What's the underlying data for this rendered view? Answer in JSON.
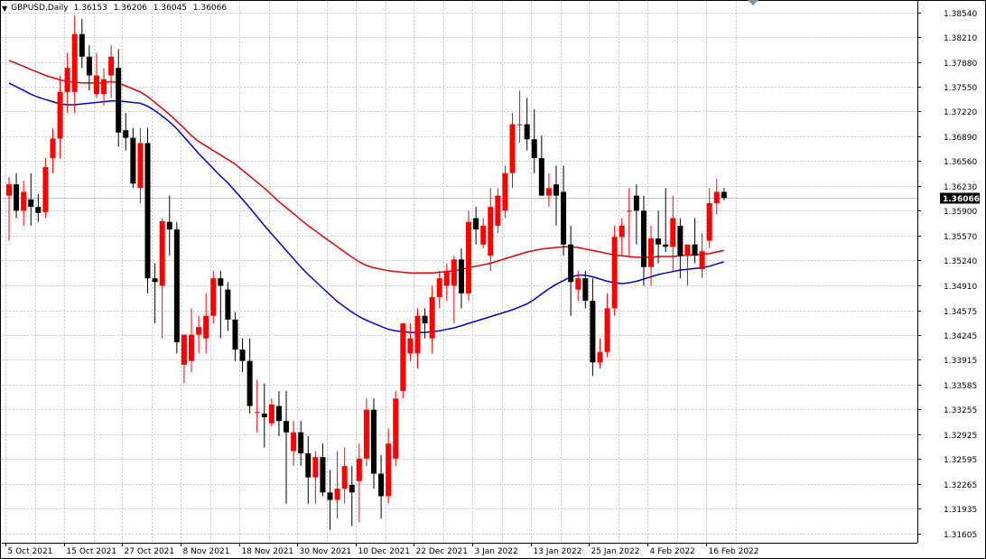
{
  "window": {
    "symbol_timeframe": "GBPUSD,Daily",
    "ohlc": [
      "1.36153",
      "1.36206",
      "1.36045",
      "1.36066"
    ],
    "current_price_label": "1.36066"
  },
  "colors": {
    "bull": "#ff0000",
    "bear": "#000000",
    "ma_fast": "#e60000",
    "ma_slow": "#0000cc",
    "grid": "#c8c8c8",
    "axis": "#000000",
    "price_line": "#c0c0c0",
    "price_label_bg": "#000000",
    "price_label_fg": "#ffffff"
  },
  "chart_data": {
    "type": "candlestick",
    "title": "GBPUSD,Daily",
    "price_axis_ticks": [
      "1.38540",
      "1.38210",
      "1.37880",
      "1.37550",
      "1.37220",
      "1.36890",
      "1.36560",
      "1.36230",
      "1.35900",
      "1.35570",
      "1.35240",
      "1.34910",
      "1.34575",
      "1.34245",
      "1.33915",
      "1.33585",
      "1.33255",
      "1.32925",
      "1.32595",
      "1.32265",
      "1.31935",
      "1.31605"
    ],
    "date_axis_labels": [
      "5 Oct 2021",
      "15 Oct 2021",
      "27 Oct 2021",
      "8 Nov 2021",
      "18 Nov 2021",
      "30 Nov 2021",
      "10 Dec 2021",
      "22 Dec 2021",
      "3 Jan 2022",
      "13 Jan 2022",
      "25 Jan 2022",
      "4 Feb 2022",
      "16 Feb 2022"
    ],
    "ylim": [
      1.3148,
      1.3868
    ],
    "grid": true,
    "candles": [
      [
        1.361,
        1.3635,
        1.355,
        1.3625
      ],
      [
        1.3625,
        1.364,
        1.358,
        1.359
      ],
      [
        1.359,
        1.363,
        1.357,
        1.3615
      ],
      [
        1.3605,
        1.364,
        1.357,
        1.3595
      ],
      [
        1.3595,
        1.3612,
        1.3575,
        1.3587
      ],
      [
        1.3588,
        1.366,
        1.358,
        1.3648
      ],
      [
        1.366,
        1.37,
        1.364,
        1.3686
      ],
      [
        1.3686,
        1.377,
        1.366,
        1.3748
      ],
      [
        1.3748,
        1.38,
        1.372,
        1.378
      ],
      [
        1.3748,
        1.385,
        1.372,
        1.3825
      ],
      [
        1.3825,
        1.3845,
        1.378,
        1.3795
      ],
      [
        1.3795,
        1.381,
        1.375,
        1.377
      ],
      [
        1.3745,
        1.38,
        1.374,
        1.377
      ],
      [
        1.3745,
        1.378,
        1.373,
        1.3765
      ],
      [
        1.377,
        1.381,
        1.374,
        1.3795
      ],
      [
        1.378,
        1.3805,
        1.3675,
        1.3694
      ],
      [
        1.3697,
        1.372,
        1.367,
        1.3687
      ],
      [
        1.3687,
        1.37,
        1.362,
        1.3626
      ],
      [
        1.362,
        1.37,
        1.36,
        1.368
      ],
      [
        1.368,
        1.37,
        1.348,
        1.35
      ],
      [
        1.35,
        1.352,
        1.344,
        1.3495
      ],
      [
        1.349,
        1.358,
        1.342,
        1.3576
      ],
      [
        1.3575,
        1.361,
        1.353,
        1.3565
      ],
      [
        1.3565,
        1.3575,
        1.34,
        1.3415
      ],
      [
        1.3385,
        1.3425,
        1.336,
        1.3425
      ],
      [
        1.339,
        1.346,
        1.3375,
        1.3425
      ],
      [
        1.3425,
        1.345,
        1.34,
        1.3435
      ],
      [
        1.342,
        1.348,
        1.34,
        1.345
      ],
      [
        1.345,
        1.351,
        1.344,
        1.35
      ],
      [
        1.35,
        1.351,
        1.342,
        1.349
      ],
      [
        1.3485,
        1.3495,
        1.343,
        1.3445
      ],
      [
        1.3445,
        1.3455,
        1.339,
        1.3405
      ],
      [
        1.3405,
        1.342,
        1.3375,
        1.339
      ],
      [
        1.339,
        1.342,
        1.332,
        1.333
      ],
      [
        1.3322,
        1.3365,
        1.3295,
        1.3322
      ],
      [
        1.332,
        1.336,
        1.3275,
        1.3315
      ],
      [
        1.3307,
        1.334,
        1.3303,
        1.3332
      ],
      [
        1.333,
        1.335,
        1.329,
        1.331
      ],
      [
        1.331,
        1.335,
        1.32,
        1.3295
      ],
      [
        1.327,
        1.331,
        1.325,
        1.3295
      ],
      [
        1.3295,
        1.331,
        1.325,
        1.3267
      ],
      [
        1.3267,
        1.329,
        1.32,
        1.3235
      ],
      [
        1.3235,
        1.327,
        1.32,
        1.3262
      ],
      [
        1.3262,
        1.328,
        1.321,
        1.3215
      ],
      [
        1.3215,
        1.3245,
        1.3165,
        1.3205
      ],
      [
        1.3205,
        1.327,
        1.318,
        1.322
      ],
      [
        1.322,
        1.3275,
        1.32,
        1.325
      ],
      [
        1.3225,
        1.325,
        1.317,
        1.3215
      ],
      [
        1.323,
        1.328,
        1.3175,
        1.326
      ],
      [
        1.326,
        1.334,
        1.325,
        1.3325
      ],
      [
        1.3325,
        1.334,
        1.322,
        1.324
      ],
      [
        1.324,
        1.3265,
        1.318,
        1.321
      ],
      [
        1.321,
        1.33,
        1.32,
        1.328
      ],
      [
        1.326,
        1.335,
        1.325,
        1.334
      ],
      [
        1.335,
        1.344,
        1.334,
        1.344
      ],
      [
        1.34,
        1.344,
        1.339,
        1.342
      ],
      [
        1.34,
        1.346,
        1.338,
        1.345
      ],
      [
        1.345,
        1.346,
        1.342,
        1.344
      ],
      [
        1.342,
        1.349,
        1.34,
        1.3475
      ],
      [
        1.3475,
        1.351,
        1.346,
        1.35
      ],
      [
        1.349,
        1.352,
        1.347,
        1.351
      ],
      [
        1.349,
        1.353,
        1.344,
        1.3525
      ],
      [
        1.3525,
        1.354,
        1.346,
        1.348
      ],
      [
        1.348,
        1.359,
        1.347,
        1.3575
      ],
      [
        1.358,
        1.3595,
        1.3545,
        1.3565
      ],
      [
        1.3545,
        1.358,
        1.354,
        1.357
      ],
      [
        1.353,
        1.362,
        1.351,
        1.3595
      ],
      [
        1.357,
        1.362,
        1.356,
        1.361
      ],
      [
        1.359,
        1.365,
        1.358,
        1.364
      ],
      [
        1.364,
        1.372,
        1.362,
        1.3705
      ],
      [
        1.3705,
        1.375,
        1.368,
        1.3705
      ],
      [
        1.3705,
        1.374,
        1.367,
        1.3685
      ],
      [
        1.3685,
        1.3725,
        1.364,
        1.366
      ],
      [
        1.366,
        1.369,
        1.361,
        1.361
      ],
      [
        1.361,
        1.364,
        1.3595,
        1.362
      ],
      [
        1.3625,
        1.365,
        1.357,
        1.361
      ],
      [
        1.3615,
        1.365,
        1.353,
        1.3545
      ],
      [
        1.3545,
        1.357,
        1.345,
        1.3495
      ],
      [
        1.3485,
        1.351,
        1.347,
        1.35
      ],
      [
        1.35,
        1.351,
        1.346,
        1.347
      ],
      [
        1.347,
        1.35,
        1.337,
        1.3388
      ],
      [
        1.3388,
        1.342,
        1.338,
        1.3402
      ],
      [
        1.3402,
        1.348,
        1.3395,
        1.346
      ],
      [
        1.346,
        1.357,
        1.345,
        1.3555
      ],
      [
        1.3555,
        1.358,
        1.353,
        1.357
      ],
      [
        1.359,
        1.362,
        1.353,
        1.359
      ],
      [
        1.361,
        1.3625,
        1.3545,
        1.359
      ],
      [
        1.359,
        1.361,
        1.349,
        1.3515
      ],
      [
        1.3515,
        1.357,
        1.349,
        1.3553
      ],
      [
        1.3553,
        1.359,
        1.352,
        1.3545
      ],
      [
        1.3545,
        1.362,
        1.3535,
        1.3542
      ],
      [
        1.3542,
        1.361,
        1.351,
        1.358
      ],
      [
        1.357,
        1.358,
        1.35,
        1.353
      ],
      [
        1.353,
        1.354,
        1.349,
        1.3545
      ],
      [
        1.3545,
        1.358,
        1.352,
        1.353
      ],
      [
        1.3512,
        1.356,
        1.35,
        1.3536
      ],
      [
        1.355,
        1.362,
        1.354,
        1.36
      ],
      [
        1.36,
        1.3632,
        1.3585,
        1.3615
      ],
      [
        1.3615,
        1.362,
        1.3604,
        1.3607
      ]
    ],
    "ma_fast": {
      "period_visible": false,
      "values": [
        1.379,
        1.3786,
        1.3782,
        1.3778,
        1.3774,
        1.377,
        1.3767,
        1.3764,
        1.3762,
        1.3761,
        1.376,
        1.376,
        1.376,
        1.376,
        1.3762,
        1.376,
        1.3756,
        1.3752,
        1.3748,
        1.3742,
        1.3734,
        1.3726,
        1.3718,
        1.3709,
        1.37,
        1.369,
        1.3682,
        1.3676,
        1.367,
        1.3664,
        1.3658,
        1.3652,
        1.3644,
        1.3636,
        1.3628,
        1.362,
        1.3611,
        1.3602,
        1.3594,
        1.3586,
        1.3578,
        1.357,
        1.3563,
        1.3556,
        1.3549,
        1.3542,
        1.3535,
        1.3528,
        1.3522,
        1.3517,
        1.3514,
        1.3512,
        1.351,
        1.3509,
        1.3508,
        1.3507,
        1.3507,
        1.3507,
        1.3507,
        1.3508,
        1.3509,
        1.351,
        1.3512,
        1.3514,
        1.3516,
        1.3518,
        1.352,
        1.3523,
        1.3526,
        1.3529,
        1.3532,
        1.3535,
        1.3537,
        1.3539,
        1.354,
        1.3541,
        1.3542,
        1.3542,
        1.3541,
        1.3539,
        1.3537,
        1.3535,
        1.3533,
        1.3531,
        1.353,
        1.3529,
        1.3528,
        1.3528,
        1.3528,
        1.3529,
        1.3529,
        1.3529,
        1.353,
        1.3531,
        1.3531,
        1.3532,
        1.3533,
        1.3535,
        1.3537
      ]
    },
    "ma_slow": {
      "period_visible": false,
      "values": [
        1.376,
        1.3755,
        1.375,
        1.3745,
        1.3741,
        1.3738,
        1.3735,
        1.3732,
        1.3731,
        1.3731,
        1.3732,
        1.3733,
        1.3734,
        1.3735,
        1.3736,
        1.3736,
        1.3735,
        1.3734,
        1.3733,
        1.3729,
        1.3723,
        1.3716,
        1.3708,
        1.3699,
        1.3688,
        1.3677,
        1.3666,
        1.3656,
        1.3646,
        1.3636,
        1.3627,
        1.3616,
        1.3605,
        1.3594,
        1.3582,
        1.357,
        1.3559,
        1.3548,
        1.3537,
        1.3526,
        1.3515,
        1.3505,
        1.3496,
        1.3487,
        1.3478,
        1.3469,
        1.3462,
        1.3455,
        1.3449,
        1.3444,
        1.344,
        1.3436,
        1.3432,
        1.343,
        1.3429,
        1.3428,
        1.3428,
        1.3428,
        1.3429,
        1.343,
        1.3432,
        1.3434,
        1.3437,
        1.344,
        1.3443,
        1.3446,
        1.3449,
        1.3452,
        1.3455,
        1.3458,
        1.3462,
        1.3466,
        1.3472,
        1.3479,
        1.3486,
        1.3492,
        1.3497,
        1.3502,
        1.3504,
        1.3504,
        1.3502,
        1.3499,
        1.3496,
        1.3494,
        1.3493,
        1.3494,
        1.3496,
        1.3499,
        1.3502,
        1.3505,
        1.3507,
        1.3509,
        1.3511,
        1.3512,
        1.3513,
        1.3514,
        1.3516,
        1.3519,
        1.3522
      ]
    }
  }
}
